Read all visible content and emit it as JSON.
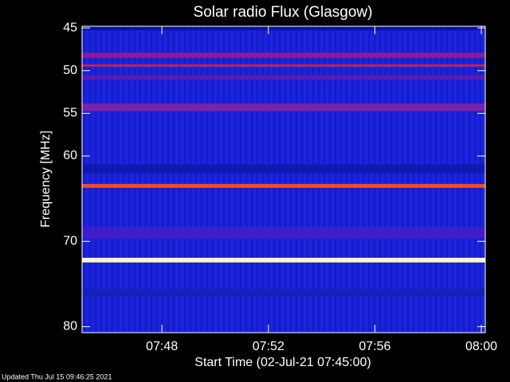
{
  "chart_data": {
    "type": "spectrogram",
    "title": "Solar radio Flux (Glasgow)",
    "xlabel": "Start Time (02-Jul-21 07:45:00)",
    "ylabel": "Frequency [MHz]",
    "footer": "Updated Thu Jul 15 09:46:25 2021",
    "xlim": [
      0,
      15.15
    ],
    "xticks": [
      {
        "value": 3,
        "label": "07:48"
      },
      {
        "value": 7,
        "label": "07:52"
      },
      {
        "value": 11,
        "label": "07:56"
      },
      {
        "value": 15,
        "label": "08:00"
      }
    ],
    "ylim": [
      44.8,
      80.7
    ],
    "yticks": [
      45,
      50,
      55,
      60,
      70,
      80
    ],
    "background_color": "#1a22d8",
    "bands": [
      {
        "frequency": 45.0,
        "width": 0.5,
        "color": "#0a10a0"
      },
      {
        "frequency": 48.2,
        "width": 0.6,
        "color": "#8a1a9a"
      },
      {
        "frequency": 49.4,
        "width": 0.3,
        "color": "#c02050"
      },
      {
        "frequency": 50.8,
        "width": 0.5,
        "color": "#5a1ab0"
      },
      {
        "frequency": 54.3,
        "width": 0.9,
        "color": "#7a22a8"
      },
      {
        "frequency": 61.5,
        "width": 1.0,
        "color": "#1018b0"
      },
      {
        "frequency": 63.5,
        "width": 0.45,
        "color": "#ff4a1a"
      },
      {
        "frequency": 69.0,
        "width": 1.4,
        "color": "#3e1ec8"
      },
      {
        "frequency": 72.2,
        "width": 0.55,
        "color": "#fff8c0"
      },
      {
        "frequency": 76.0,
        "width": 0.8,
        "color": "#1420b8"
      }
    ]
  }
}
